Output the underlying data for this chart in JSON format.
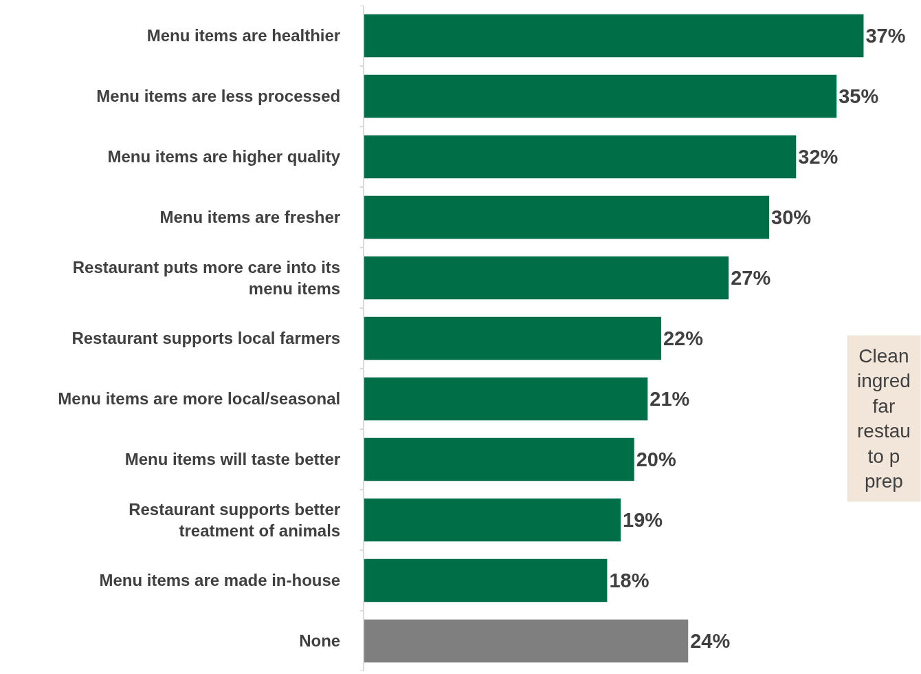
{
  "chart_data": {
    "type": "bar",
    "orientation": "horizontal",
    "categories": [
      "Menu items are healthier",
      "Menu items are less processed",
      "Menu items are higher quality",
      "Menu items are fresher",
      "Restaurant puts more care into its\nmenu items",
      "Restaurant supports local farmers",
      "Menu items are more local/seasonal",
      "Menu items will taste better",
      "Restaurant supports better\ntreatment of animals",
      "Menu items are made in-house",
      "None"
    ],
    "values": [
      37,
      35,
      32,
      30,
      27,
      22,
      21,
      20,
      19,
      18,
      24
    ],
    "colors": [
      "#006e46",
      "#006e46",
      "#006e46",
      "#006e46",
      "#006e46",
      "#006e46",
      "#006e46",
      "#006e46",
      "#006e46",
      "#006e46",
      "#7f7f7f"
    ],
    "value_labels": [
      "37%",
      "35%",
      "32%",
      "30%",
      "27%",
      "22%",
      "21%",
      "20%",
      "19%",
      "18%",
      "24%"
    ],
    "annotations": [
      "Clean\ningred\nfar\nrestau\nto p\nprep"
    ],
    "legend": false
  }
}
